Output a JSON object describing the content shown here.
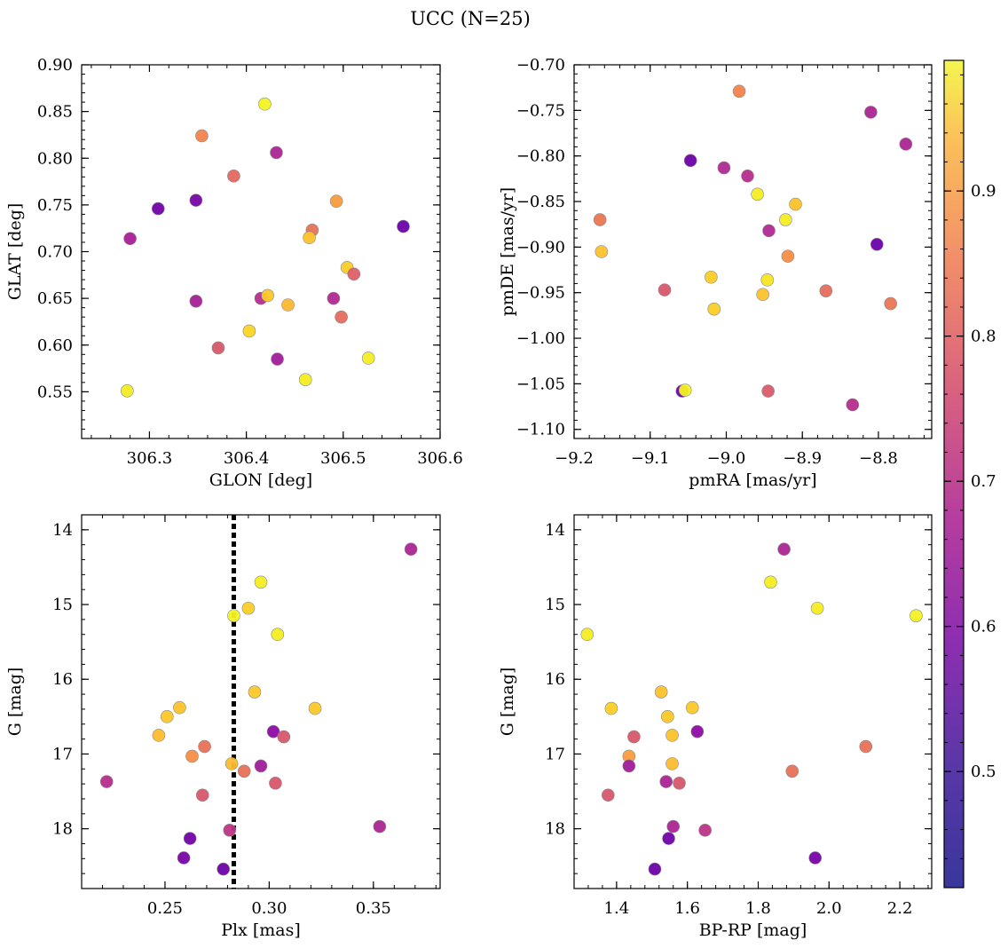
{
  "figure": {
    "title": "UCC (N=25)"
  },
  "colorbar": {
    "min": 0.42,
    "max": 0.99,
    "ticks": [
      0.5,
      0.6,
      0.7,
      0.8,
      0.9
    ],
    "colormap": "plasma"
  },
  "chart_data": [
    {
      "type": "scatter",
      "xlabel": "GLON [deg]",
      "ylabel": "GLAT [deg]",
      "xlim": [
        306.23,
        306.6
      ],
      "ylim": [
        0.5,
        0.9
      ],
      "xticks": [
        306.3,
        306.4,
        306.5,
        306.6
      ],
      "yticks": [
        0.55,
        0.6,
        0.65,
        0.7,
        0.75,
        0.8,
        0.85,
        0.9
      ],
      "points": [
        {
          "x": 306.419,
          "y": 0.858,
          "c": 0.98
        },
        {
          "x": 306.354,
          "y": 0.824,
          "c": 0.78
        },
        {
          "x": 306.431,
          "y": 0.806,
          "c": 0.56
        },
        {
          "x": 306.387,
          "y": 0.781,
          "c": 0.72
        },
        {
          "x": 306.309,
          "y": 0.746,
          "c": 0.45
        },
        {
          "x": 306.348,
          "y": 0.755,
          "c": 0.46
        },
        {
          "x": 306.493,
          "y": 0.754,
          "c": 0.83
        },
        {
          "x": 306.468,
          "y": 0.723,
          "c": 0.74
        },
        {
          "x": 306.465,
          "y": 0.715,
          "c": 0.9
        },
        {
          "x": 306.562,
          "y": 0.727,
          "c": 0.44
        },
        {
          "x": 306.28,
          "y": 0.714,
          "c": 0.55
        },
        {
          "x": 306.504,
          "y": 0.683,
          "c": 0.92
        },
        {
          "x": 306.511,
          "y": 0.676,
          "c": 0.7
        },
        {
          "x": 306.415,
          "y": 0.65,
          "c": 0.58
        },
        {
          "x": 306.422,
          "y": 0.653,
          "c": 0.91
        },
        {
          "x": 306.49,
          "y": 0.65,
          "c": 0.57
        },
        {
          "x": 306.443,
          "y": 0.643,
          "c": 0.88
        },
        {
          "x": 306.348,
          "y": 0.647,
          "c": 0.55
        },
        {
          "x": 306.498,
          "y": 0.63,
          "c": 0.73
        },
        {
          "x": 306.403,
          "y": 0.615,
          "c": 0.93
        },
        {
          "x": 306.371,
          "y": 0.597,
          "c": 0.68
        },
        {
          "x": 306.432,
          "y": 0.585,
          "c": 0.54
        },
        {
          "x": 306.526,
          "y": 0.586,
          "c": 0.97
        },
        {
          "x": 306.461,
          "y": 0.563,
          "c": 0.97
        },
        {
          "x": 306.277,
          "y": 0.551,
          "c": 0.97
        }
      ]
    },
    {
      "type": "scatter",
      "xlabel": "pmRA [mas/yr]",
      "ylabel": "pmDE [mas/yr]",
      "xlim": [
        -9.2,
        -8.73
      ],
      "ylim": [
        -1.11,
        -0.7
      ],
      "xticks": [
        -9.2,
        -9.1,
        -9.0,
        -8.9,
        -8.8
      ],
      "yticks": [
        -1.1,
        -1.05,
        -1.0,
        -0.95,
        -0.9,
        -0.85,
        -0.8,
        -0.75,
        -0.7
      ],
      "points": [
        {
          "x": -8.983,
          "y": -0.729,
          "c": 0.78
        },
        {
          "x": -8.81,
          "y": -0.752,
          "c": 0.56
        },
        {
          "x": -8.764,
          "y": -0.787,
          "c": 0.56
        },
        {
          "x": -9.047,
          "y": -0.805,
          "c": 0.44
        },
        {
          "x": -9.003,
          "y": -0.813,
          "c": 0.57
        },
        {
          "x": -8.972,
          "y": -0.822,
          "c": 0.58
        },
        {
          "x": -8.959,
          "y": -0.842,
          "c": 0.97
        },
        {
          "x": -8.909,
          "y": -0.853,
          "c": 0.9
        },
        {
          "x": -8.922,
          "y": -0.87,
          "c": 0.97
        },
        {
          "x": -8.944,
          "y": -0.882,
          "c": 0.57
        },
        {
          "x": -9.166,
          "y": -0.87,
          "c": 0.75
        },
        {
          "x": -9.164,
          "y": -0.905,
          "c": 0.9
        },
        {
          "x": -8.802,
          "y": -0.897,
          "c": 0.44
        },
        {
          "x": -8.919,
          "y": -0.91,
          "c": 0.8
        },
        {
          "x": -9.02,
          "y": -0.933,
          "c": 0.92
        },
        {
          "x": -8.946,
          "y": -0.936,
          "c": 0.96
        },
        {
          "x": -9.081,
          "y": -0.947,
          "c": 0.68
        },
        {
          "x": -8.869,
          "y": -0.948,
          "c": 0.73
        },
        {
          "x": -8.952,
          "y": -0.952,
          "c": 0.9
        },
        {
          "x": -8.784,
          "y": -0.962,
          "c": 0.75
        },
        {
          "x": -9.016,
          "y": -0.968,
          "c": 0.92
        },
        {
          "x": -9.058,
          "y": -1.058,
          "c": 0.44
        },
        {
          "x": -9.054,
          "y": -1.057,
          "c": 0.98
        },
        {
          "x": -8.945,
          "y": -1.058,
          "c": 0.69
        },
        {
          "x": -8.834,
          "y": -1.073,
          "c": 0.58
        }
      ]
    },
    {
      "type": "scatter",
      "xlabel": "Plx [mas]",
      "ylabel": "G [mag]",
      "xlim": [
        0.21,
        0.382
      ],
      "ylim": [
        18.8,
        13.8
      ],
      "xticks": [
        0.25,
        0.3,
        0.35
      ],
      "yticks": [
        14,
        15,
        16,
        17,
        18
      ],
      "vline": 0.283,
      "points": [
        {
          "x": 0.368,
          "y": 14.26,
          "c": 0.56
        },
        {
          "x": 0.296,
          "y": 14.7,
          "c": 0.97
        },
        {
          "x": 0.29,
          "y": 15.05,
          "c": 0.92
        },
        {
          "x": 0.283,
          "y": 15.15,
          "c": 0.98
        },
        {
          "x": 0.304,
          "y": 15.4,
          "c": 0.97
        },
        {
          "x": 0.293,
          "y": 16.17,
          "c": 0.91
        },
        {
          "x": 0.257,
          "y": 16.38,
          "c": 0.9
        },
        {
          "x": 0.322,
          "y": 16.39,
          "c": 0.91
        },
        {
          "x": 0.251,
          "y": 16.5,
          "c": 0.91
        },
        {
          "x": 0.302,
          "y": 16.7,
          "c": 0.5
        },
        {
          "x": 0.307,
          "y": 16.77,
          "c": 0.68
        },
        {
          "x": 0.247,
          "y": 16.75,
          "c": 0.89
        },
        {
          "x": 0.269,
          "y": 16.9,
          "c": 0.74
        },
        {
          "x": 0.263,
          "y": 17.03,
          "c": 0.8
        },
        {
          "x": 0.282,
          "y": 17.13,
          "c": 0.89
        },
        {
          "x": 0.296,
          "y": 17.16,
          "c": 0.54
        },
        {
          "x": 0.288,
          "y": 17.23,
          "c": 0.74
        },
        {
          "x": 0.222,
          "y": 17.37,
          "c": 0.58
        },
        {
          "x": 0.303,
          "y": 17.39,
          "c": 0.68
        },
        {
          "x": 0.268,
          "y": 17.55,
          "c": 0.68
        },
        {
          "x": 0.353,
          "y": 17.97,
          "c": 0.56
        },
        {
          "x": 0.281,
          "y": 18.02,
          "c": 0.6
        },
        {
          "x": 0.262,
          "y": 18.13,
          "c": 0.45
        },
        {
          "x": 0.259,
          "y": 18.39,
          "c": 0.46
        },
        {
          "x": 0.278,
          "y": 18.54,
          "c": 0.44
        }
      ]
    },
    {
      "type": "scatter",
      "xlabel": "BP-RP [mag]",
      "ylabel": "G [mag]",
      "xlim": [
        1.28,
        2.29
      ],
      "ylim": [
        18.8,
        13.8
      ],
      "xticks": [
        1.4,
        1.6,
        1.8,
        2.0,
        2.2
      ],
      "yticks": [
        14,
        15,
        16,
        17,
        18
      ],
      "points": [
        {
          "x": 1.873,
          "y": 14.26,
          "c": 0.56
        },
        {
          "x": 1.835,
          "y": 14.7,
          "c": 0.97
        },
        {
          "x": 1.967,
          "y": 15.05,
          "c": 0.97
        },
        {
          "x": 2.246,
          "y": 15.15,
          "c": 0.98
        },
        {
          "x": 1.317,
          "y": 15.4,
          "c": 0.97
        },
        {
          "x": 1.526,
          "y": 16.17,
          "c": 0.9
        },
        {
          "x": 1.385,
          "y": 16.39,
          "c": 0.92
        },
        {
          "x": 1.614,
          "y": 16.38,
          "c": 0.91
        },
        {
          "x": 1.544,
          "y": 16.5,
          "c": 0.91
        },
        {
          "x": 1.628,
          "y": 16.7,
          "c": 0.5
        },
        {
          "x": 1.557,
          "y": 16.75,
          "c": 0.9
        },
        {
          "x": 1.449,
          "y": 16.77,
          "c": 0.68
        },
        {
          "x": 2.104,
          "y": 16.9,
          "c": 0.74
        },
        {
          "x": 1.435,
          "y": 17.03,
          "c": 0.83
        },
        {
          "x": 1.557,
          "y": 17.13,
          "c": 0.89
        },
        {
          "x": 1.435,
          "y": 17.16,
          "c": 0.54
        },
        {
          "x": 1.896,
          "y": 17.23,
          "c": 0.74
        },
        {
          "x": 1.54,
          "y": 17.37,
          "c": 0.56
        },
        {
          "x": 1.577,
          "y": 17.39,
          "c": 0.68
        },
        {
          "x": 1.376,
          "y": 17.55,
          "c": 0.68
        },
        {
          "x": 1.56,
          "y": 17.97,
          "c": 0.56
        },
        {
          "x": 1.65,
          "y": 18.02,
          "c": 0.6
        },
        {
          "x": 1.547,
          "y": 18.13,
          "c": 0.45
        },
        {
          "x": 1.961,
          "y": 18.39,
          "c": 0.46
        },
        {
          "x": 1.508,
          "y": 18.54,
          "c": 0.44
        }
      ]
    }
  ]
}
